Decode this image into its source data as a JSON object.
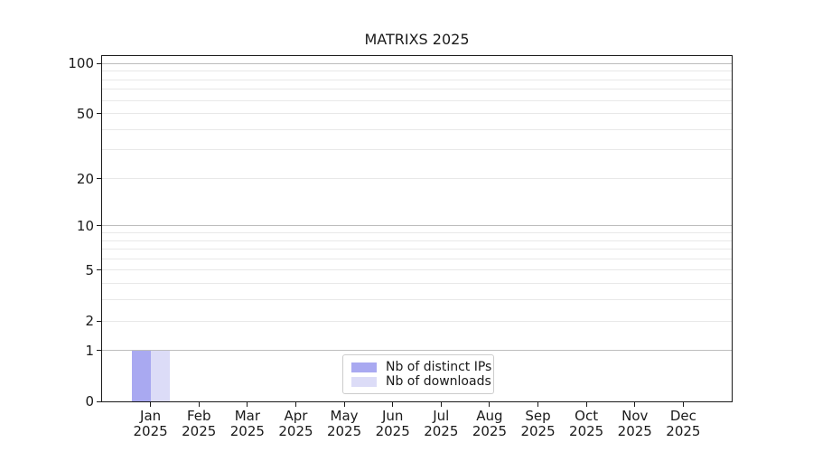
{
  "chart_data": {
    "type": "bar",
    "title": "MATRIXS 2025",
    "categories": [
      "Jan 2025",
      "Feb 2025",
      "Mar 2025",
      "Apr 2025",
      "May 2025",
      "Jun 2025",
      "Jul 2025",
      "Aug 2025",
      "Sep 2025",
      "Oct 2025",
      "Nov 2025",
      "Dec 2025"
    ],
    "series": [
      {
        "name": "Nb of distinct IPs",
        "color": "#a9a9f1",
        "values": [
          1,
          0,
          0,
          0,
          0,
          0,
          0,
          0,
          0,
          0,
          0,
          0
        ]
      },
      {
        "name": "Nb of downloads",
        "color": "#dcdcf7",
        "values": [
          1,
          0,
          0,
          0,
          0,
          0,
          0,
          0,
          0,
          0,
          0,
          0
        ]
      }
    ],
    "xlabel": "",
    "ylabel": "",
    "y_axis": {
      "scale": "log1p",
      "ylim": [
        0,
        110
      ],
      "tick_values": [
        0,
        1,
        2,
        5,
        10,
        20,
        50,
        100
      ],
      "major_grid_values": [
        1,
        10,
        100
      ],
      "minor_grid_values": [
        2,
        3,
        4,
        5,
        6,
        7,
        8,
        9,
        20,
        30,
        40,
        50,
        60,
        70,
        80,
        90
      ]
    },
    "grid": true,
    "legend_position": "inside lower center"
  },
  "colors": {
    "axis": "#1a1a1a",
    "text": "#1a1a1a",
    "major_grid": "#bdbdbd",
    "minor_grid": "#e8e8e8",
    "legend_border": "#cccccc",
    "background": "#ffffff"
  }
}
